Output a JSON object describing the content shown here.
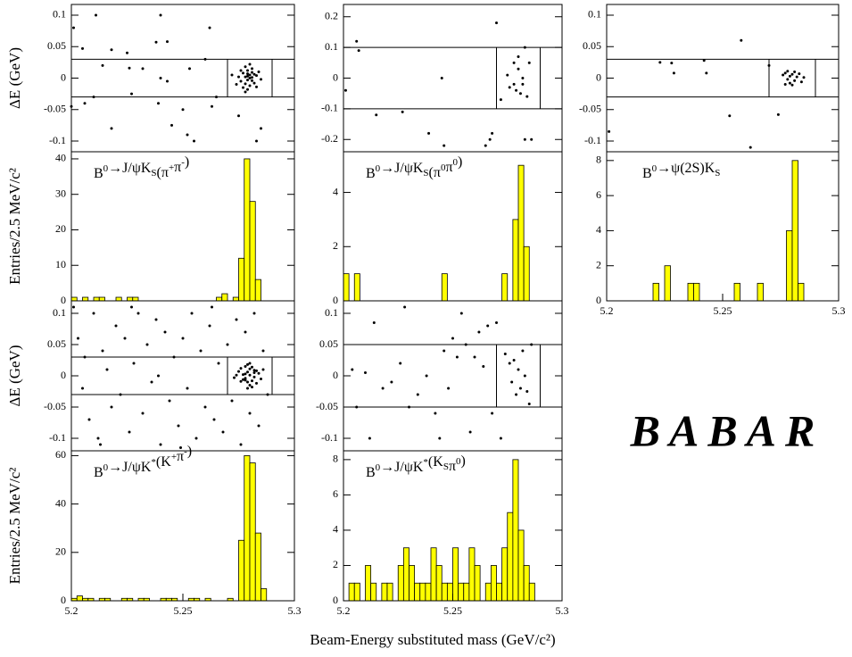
{
  "xlabel": "Beam-Energy substituted mass (GeV/c²)",
  "logo": "BABAR",
  "chart_data": [
    {
      "type": "scatter",
      "ylabel": "ΔE (GeV)",
      "xlim": [
        5.2,
        5.3
      ],
      "ylim": [
        -0.117,
        0.117
      ],
      "yticks": [
        -0.1,
        -0.05,
        0,
        0.05,
        0.1
      ],
      "box_x": [
        5.27,
        5.29
      ],
      "box_y": [
        -0.03,
        0.03
      ],
      "x": [
        5.201,
        5.205,
        5.211,
        5.214,
        5.218,
        5.225,
        5.226,
        5.232,
        5.238,
        5.243,
        5.2,
        5.206,
        5.21,
        5.218,
        5.227,
        5.239,
        5.24,
        5.243,
        5.24,
        5.253,
        5.26,
        5.262,
        5.263,
        5.252,
        5.25,
        5.255,
        5.265,
        5.275,
        5.283,
        5.285,
        5.245,
        5.278,
        5.279,
        5.28,
        5.281,
        5.277,
        5.279,
        5.282,
        5.28,
        5.276,
        5.283,
        5.278,
        5.281,
        5.279,
        5.277,
        5.284,
        5.275,
        5.28,
        5.282,
        5.278,
        5.281,
        5.279,
        5.283,
        5.276,
        5.28,
        5.278,
        5.274,
        5.285,
        5.272,
        5.279,
        5.281
      ],
      "y": [
        0.08,
        0.047,
        0.1,
        0.02,
        0.045,
        0.04,
        0.016,
        0.015,
        0.057,
        0.058,
        -0.045,
        -0.04,
        -0.03,
        -0.08,
        -0.025,
        -0.04,
        0,
        -0.005,
        0.1,
        0.015,
        0.03,
        0.08,
        -0.045,
        -0.09,
        -0.05,
        -0.1,
        -0.03,
        -0.06,
        -0.1,
        -0.08,
        -0.075,
        0.002,
        -0.003,
        0.005,
        0.001,
        0.008,
        0.012,
        -0.008,
        -0.012,
        -0.005,
        0.004,
        0.018,
        0.015,
        -0.018,
        -0.015,
        0.01,
        0.002,
        0,
        0.006,
        -0.009,
        -0.004,
        0.007,
        -0.014,
        0.012,
        0.022,
        -0.022,
        -0.01,
        -0.002,
        0.005,
        0.003,
        0.009
      ]
    },
    {
      "type": "histogram",
      "ylabel": "Entries/2.5 MeV/c²",
      "title": [
        "B",
        {
          "sup": "0"
        },
        "→J/ψK",
        {
          "sub": "S"
        },
        "(π",
        {
          "sup": "+"
        },
        "π",
        {
          "sup": "-"
        },
        ")"
      ],
      "color": "#ffff00",
      "xlim": [
        5.2,
        5.3
      ],
      "ylim": [
        0,
        42
      ],
      "yticks": [
        0,
        10,
        20,
        30,
        40
      ],
      "bins": [
        5.2,
        5.2025,
        5.205,
        5.2075,
        5.21,
        5.2125,
        5.215,
        5.2175,
        5.22,
        5.2225,
        5.225,
        5.2275,
        5.23,
        5.2325,
        5.235,
        5.2375,
        5.24,
        5.2425,
        5.245,
        5.2475,
        5.25,
        5.2525,
        5.255,
        5.2575,
        5.26,
        5.2625,
        5.265,
        5.2675,
        5.27,
        5.2725,
        5.275,
        5.2775,
        5.28,
        5.2825,
        5.285,
        5.2875,
        5.29
      ],
      "values": [
        1,
        0,
        1,
        0,
        1,
        1,
        0,
        0,
        1,
        0,
        1,
        1,
        0,
        0,
        0,
        0,
        0,
        0,
        0,
        0,
        0,
        0,
        0,
        0,
        0,
        0,
        1,
        2,
        0,
        1,
        12,
        40,
        28,
        6,
        0,
        0
      ]
    },
    {
      "type": "scatter",
      "xlim": [
        5.2,
        5.3
      ],
      "ylim": [
        -0.24,
        0.24
      ],
      "yticks": [
        -0.2,
        -0.1,
        0,
        0.1,
        0.2
      ],
      "box_x": [
        5.27,
        5.29
      ],
      "box_y": [
        -0.1,
        0.1
      ],
      "x": [
        5.201,
        5.206,
        5.207,
        5.215,
        5.227,
        5.239,
        5.245,
        5.246,
        5.265,
        5.267,
        5.268,
        5.27,
        5.283,
        5.285,
        5.283,
        5.286,
        5.272,
        5.278,
        5.279,
        5.28,
        5.281,
        5.282,
        5.284,
        5.278,
        5.28,
        5.276,
        5.282,
        5.275
      ],
      "y": [
        -0.04,
        0.12,
        0.09,
        -0.12,
        -0.11,
        -0.18,
        0,
        -0.22,
        -0.22,
        -0.2,
        -0.18,
        0.18,
        0.1,
        0.05,
        -0.2,
        -0.2,
        -0.07,
        -0.02,
        -0.04,
        0.03,
        -0.05,
        0,
        -0.06,
        0.05,
        0.07,
        -0.03,
        -0.02,
        0.01
      ]
    },
    {
      "type": "histogram",
      "title": [
        "B",
        {
          "sup": "0"
        },
        "→J/ψK",
        {
          "sub": "S"
        },
        "(π",
        {
          "sup": "0"
        },
        "π",
        {
          "sup": "0"
        },
        ")"
      ],
      "color": "#ffff00",
      "xlim": [
        5.2,
        5.3
      ],
      "ylim": [
        0,
        5.5
      ],
      "yticks": [
        0,
        2,
        4
      ],
      "bins": [
        5.2,
        5.2025,
        5.205,
        5.2075,
        5.21,
        5.2125,
        5.215,
        5.2175,
        5.22,
        5.2225,
        5.225,
        5.2275,
        5.23,
        5.2325,
        5.235,
        5.2375,
        5.24,
        5.2425,
        5.245,
        5.2475,
        5.25,
        5.2525,
        5.255,
        5.2575,
        5.26,
        5.2625,
        5.265,
        5.2675,
        5.27,
        5.2725,
        5.275,
        5.2775,
        5.28,
        5.2825,
        5.285,
        5.2875,
        5.29
      ],
      "values": [
        1,
        0,
        1,
        0,
        0,
        0,
        0,
        0,
        0,
        0,
        0,
        0,
        0,
        0,
        0,
        0,
        0,
        0,
        1,
        0,
        0,
        0,
        0,
        0,
        0,
        0,
        0,
        0,
        0,
        1,
        0,
        3,
        5,
        2,
        0,
        0
      ]
    },
    {
      "type": "scatter",
      "xlim": [
        5.2,
        5.3
      ],
      "ylim": [
        -0.117,
        0.117
      ],
      "yticks": [
        -0.1,
        -0.05,
        0,
        0.05,
        0.1
      ],
      "box_x": [
        5.27,
        5.29
      ],
      "box_y": [
        -0.03,
        0.03
      ],
      "x": [
        5.201,
        5.223,
        5.228,
        5.229,
        5.242,
        5.243,
        5.253,
        5.258,
        5.262,
        5.27,
        5.274,
        5.276,
        5.277,
        5.278,
        5.279,
        5.28,
        5.281,
        5.282,
        5.283,
        5.284,
        5.277,
        5.279,
        5.281,
        5.285,
        5.28,
        5.278
      ],
      "y": [
        -0.085,
        0.025,
        0.024,
        0.008,
        0.028,
        0.008,
        -0.06,
        0.06,
        -0.11,
        0.02,
        -0.058,
        0.005,
        0.008,
        -0.002,
        0.003,
        0.006,
        -0.004,
        0.002,
        0.007,
        -0.006,
        -0.01,
        -0.008,
        0.01,
        0.001,
        -0.011,
        0.011
      ]
    },
    {
      "type": "histogram",
      "title": [
        "B",
        {
          "sup": "0"
        },
        "→ψ(2S)K",
        {
          "sub": "S"
        }
      ],
      "color": "#ffff00",
      "xlim": [
        5.2,
        5.3
      ],
      "ylim": [
        0,
        8.5
      ],
      "yticks": [
        0,
        2,
        4,
        6,
        8
      ],
      "xticks": [
        5.2,
        5.25,
        5.3
      ],
      "bins": [
        5.2,
        5.2025,
        5.205,
        5.2075,
        5.21,
        5.2125,
        5.215,
        5.2175,
        5.22,
        5.2225,
        5.225,
        5.2275,
        5.23,
        5.2325,
        5.235,
        5.2375,
        5.24,
        5.2425,
        5.245,
        5.2475,
        5.25,
        5.2525,
        5.255,
        5.2575,
        5.26,
        5.2625,
        5.265,
        5.2675,
        5.27,
        5.2725,
        5.275,
        5.2775,
        5.28,
        5.2825,
        5.285,
        5.2875,
        5.29
      ],
      "values": [
        0,
        0,
        0,
        0,
        0,
        0,
        0,
        0,
        1,
        0,
        2,
        0,
        0,
        0,
        1,
        1,
        0,
        0,
        0,
        0,
        0,
        0,
        1,
        0,
        0,
        0,
        1,
        0,
        0,
        0,
        0,
        4,
        8,
        1,
        0,
        0
      ]
    },
    {
      "type": "scatter",
      "ylabel": "ΔE (GeV)",
      "xlim": [
        5.2,
        5.3
      ],
      "ylim": [
        -0.12,
        0.12
      ],
      "yticks": [
        -0.1,
        -0.05,
        0,
        0.05,
        0.1
      ],
      "box_x": [
        5.27,
        5.29
      ],
      "box_y": [
        -0.03,
        0.03
      ],
      "x": [
        5.201,
        5.203,
        5.205,
        5.206,
        5.208,
        5.21,
        5.212,
        5.214,
        5.216,
        5.218,
        5.22,
        5.222,
        5.224,
        5.226,
        5.228,
        5.23,
        5.232,
        5.234,
        5.236,
        5.238,
        5.24,
        5.242,
        5.244,
        5.246,
        5.248,
        5.25,
        5.252,
        5.254,
        5.256,
        5.258,
        5.26,
        5.262,
        5.264,
        5.266,
        5.268,
        5.27,
        5.272,
        5.274,
        5.276,
        5.278,
        5.28,
        5.282,
        5.284,
        5.286,
        5.288,
        5.213,
        5.227,
        5.249,
        5.263,
        5.239,
        5.277,
        5.278,
        5.279,
        5.28,
        5.281,
        5.282,
        5.276,
        5.283,
        5.278,
        5.28,
        5.279,
        5.281,
        5.277,
        5.284,
        5.275,
        5.282,
        5.279,
        5.28,
        5.278,
        5.281,
        5.283,
        5.276,
        5.285,
        5.274,
        5.286,
        5.273,
        5.28,
        5.279,
        5.282,
        5.278
      ],
      "y": [
        0.11,
        0.06,
        -0.02,
        0.03,
        -0.07,
        0.1,
        -0.1,
        0.04,
        0.01,
        -0.05,
        0.08,
        -0.03,
        0.06,
        -0.09,
        0.02,
        0.1,
        -0.06,
        0.05,
        -0.01,
        0.09,
        -0.11,
        0.07,
        -0.04,
        0.03,
        -0.08,
        0.06,
        -0.02,
        0.1,
        -0.1,
        0.04,
        -0.05,
        0.08,
        -0.07,
        0.02,
        -0.09,
        0.05,
        -0.04,
        0.09,
        -0.11,
        0.07,
        -0.06,
        0.1,
        -0.08,
        0.04,
        -0.03,
        -0.11,
        0.11,
        -0.115,
        0.11,
        0,
        0.002,
        -0.004,
        0.006,
        0.001,
        -0.008,
        0.009,
        0.012,
        -0.012,
        0.015,
        -0.015,
        0.018,
        -0.018,
        -0.006,
        0.004,
        0.007,
        -0.002,
        -0.01,
        0.011,
        0.003,
        0.014,
        0.008,
        -0.009,
        -0.005,
        0.001,
        0.01,
        -0.003,
        0.02,
        -0.02,
        0.005,
        -0.007
      ]
    },
    {
      "type": "histogram",
      "ylabel": "Entries/2.5 MeV/c²",
      "title": [
        "B",
        {
          "sup": "0"
        },
        "→J/ψK",
        {
          "sup": "*"
        },
        "(K",
        {
          "sup": "+"
        },
        "π",
        {
          "sup": "-"
        },
        ")"
      ],
      "color": "#ffff00",
      "xlim": [
        5.2,
        5.3
      ],
      "ylim": [
        0,
        62
      ],
      "yticks": [
        0,
        20,
        40,
        60
      ],
      "xticks": [
        5.2,
        5.25,
        5.3
      ],
      "bins": [
        5.2,
        5.2025,
        5.205,
        5.2075,
        5.21,
        5.2125,
        5.215,
        5.2175,
        5.22,
        5.2225,
        5.225,
        5.2275,
        5.23,
        5.2325,
        5.235,
        5.2375,
        5.24,
        5.2425,
        5.245,
        5.2475,
        5.25,
        5.2525,
        5.255,
        5.2575,
        5.26,
        5.2625,
        5.265,
        5.2675,
        5.27,
        5.2725,
        5.275,
        5.2775,
        5.28,
        5.2825,
        5.285,
        5.2875,
        5.29
      ],
      "values": [
        1,
        2,
        1,
        1,
        0,
        1,
        1,
        0,
        0,
        1,
        1,
        0,
        1,
        1,
        0,
        0,
        1,
        1,
        1,
        0,
        0,
        1,
        1,
        0,
        1,
        0,
        0,
        0,
        1,
        0,
        25,
        60,
        57,
        28,
        5,
        0
      ]
    },
    {
      "type": "scatter",
      "xlim": [
        5.2,
        5.3
      ],
      "ylim": [
        -0.12,
        0.12
      ],
      "yticks": [
        -0.1,
        -0.05,
        0,
        0.05,
        0.1
      ],
      "box_x": [
        5.27,
        5.29
      ],
      "box_y": [
        -0.05,
        0.05
      ],
      "x": [
        5.204,
        5.206,
        5.21,
        5.214,
        5.218,
        5.222,
        5.226,
        5.23,
        5.234,
        5.238,
        5.242,
        5.244,
        5.246,
        5.248,
        5.25,
        5.252,
        5.254,
        5.256,
        5.258,
        5.26,
        5.262,
        5.264,
        5.266,
        5.268,
        5.27,
        5.272,
        5.274,
        5.276,
        5.277,
        5.278,
        5.279,
        5.28,
        5.281,
        5.282,
        5.283,
        5.284,
        5.285,
        5.286,
        5.228,
        5.212
      ],
      "y": [
        0.01,
        -0.05,
        0.005,
        0.085,
        -0.02,
        -0.01,
        0.02,
        -0.05,
        -0.03,
        0,
        -0.06,
        -0.1,
        0.04,
        -0.02,
        0.06,
        0.03,
        0.1,
        0.05,
        -0.09,
        0.03,
        0.07,
        0.015,
        0.08,
        -0.06,
        0.085,
        -0.1,
        0.035,
        0.02,
        -0.01,
        0.025,
        -0.03,
        0.01,
        -0.02,
        0.04,
        0,
        -0.025,
        -0.045,
        0.05,
        0.11,
        -0.1
      ]
    },
    {
      "type": "histogram",
      "title": [
        "B",
        {
          "sup": "0"
        },
        "→J/ψK",
        {
          "sup": "*"
        },
        "(K",
        {
          "sub": "S"
        },
        "π",
        {
          "sup": "0"
        },
        ")"
      ],
      "color": "#ffff00",
      "xlim": [
        5.2,
        5.3
      ],
      "ylim": [
        0,
        8.5
      ],
      "yticks": [
        0,
        2,
        4,
        6,
        8
      ],
      "xticks": [
        5.2,
        5.25,
        5.3
      ],
      "bins": [
        5.2,
        5.2025,
        5.205,
        5.2075,
        5.21,
        5.2125,
        5.215,
        5.2175,
        5.22,
        5.2225,
        5.225,
        5.2275,
        5.23,
        5.2325,
        5.235,
        5.2375,
        5.24,
        5.2425,
        5.245,
        5.2475,
        5.25,
        5.2525,
        5.255,
        5.2575,
        5.26,
        5.2625,
        5.265,
        5.2675,
        5.27,
        5.2725,
        5.275,
        5.2775,
        5.28,
        5.2825,
        5.285,
        5.2875,
        5.29
      ],
      "values": [
        0,
        1,
        1,
        0,
        2,
        1,
        0,
        1,
        1,
        0,
        2,
        3,
        2,
        1,
        1,
        1,
        3,
        2,
        1,
        1,
        3,
        1,
        1,
        3,
        2,
        0,
        1,
        2,
        1,
        3,
        5,
        8,
        4,
        2,
        1,
        0
      ]
    }
  ]
}
